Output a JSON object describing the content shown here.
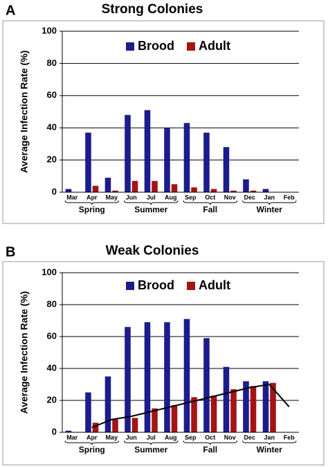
{
  "chart_data": [
    {
      "type": "bar",
      "label": "A",
      "title": "Strong Colonies",
      "y_label": "Average Infection Rate (%)",
      "categories": [
        "Mar",
        "Apr",
        "May",
        "Jun",
        "Jul",
        "Aug",
        "Sep",
        "Oct",
        "Nov",
        "Dec",
        "Jan",
        "Feb"
      ],
      "groups": [
        "Spring",
        "Summer",
        "Fall",
        "Winter"
      ],
      "series": [
        {
          "name": "Brood",
          "color": "#1c1c8c",
          "values": [
            2,
            37,
            9,
            48,
            51,
            40,
            43,
            37,
            28,
            8,
            2,
            0
          ]
        },
        {
          "name": "Adult",
          "color": "#a31414",
          "values": [
            0,
            4,
            1,
            7,
            7,
            5,
            3,
            2,
            1,
            1,
            0,
            0
          ]
        }
      ],
      "ylim": [
        0,
        100
      ],
      "yticks": [
        0,
        20,
        40,
        60,
        80,
        100
      ],
      "grid": true
    },
    {
      "type": "bar",
      "label": "B",
      "title": "Weak Colonies",
      "y_label": "Average Infection Rate (%)",
      "categories": [
        "Mar",
        "Apr",
        "May",
        "Jun",
        "Jul",
        "Aug",
        "Sep",
        "Oct",
        "Nov",
        "Dec",
        "Jan",
        "Feb"
      ],
      "groups": [
        "Spring",
        "Summer",
        "Fall",
        "Winter"
      ],
      "series": [
        {
          "name": "Brood",
          "color": "#1c1c8c",
          "values": [
            1,
            25,
            35,
            66,
            69,
            69,
            71,
            59,
            41,
            32,
            32,
            0
          ]
        },
        {
          "name": "Adult",
          "color": "#a31414",
          "values": [
            0,
            6,
            8,
            9,
            15,
            17,
            22,
            23,
            27,
            29,
            31,
            0
          ]
        }
      ],
      "trend": {
        "color": "#000000",
        "values": [
          null,
          3,
          8,
          10,
          13,
          16,
          19,
          22,
          25,
          28,
          30,
          16
        ]
      },
      "ylim": [
        0,
        100
      ],
      "yticks": [
        0,
        20,
        40,
        60,
        80,
        100
      ],
      "grid": true
    }
  ]
}
